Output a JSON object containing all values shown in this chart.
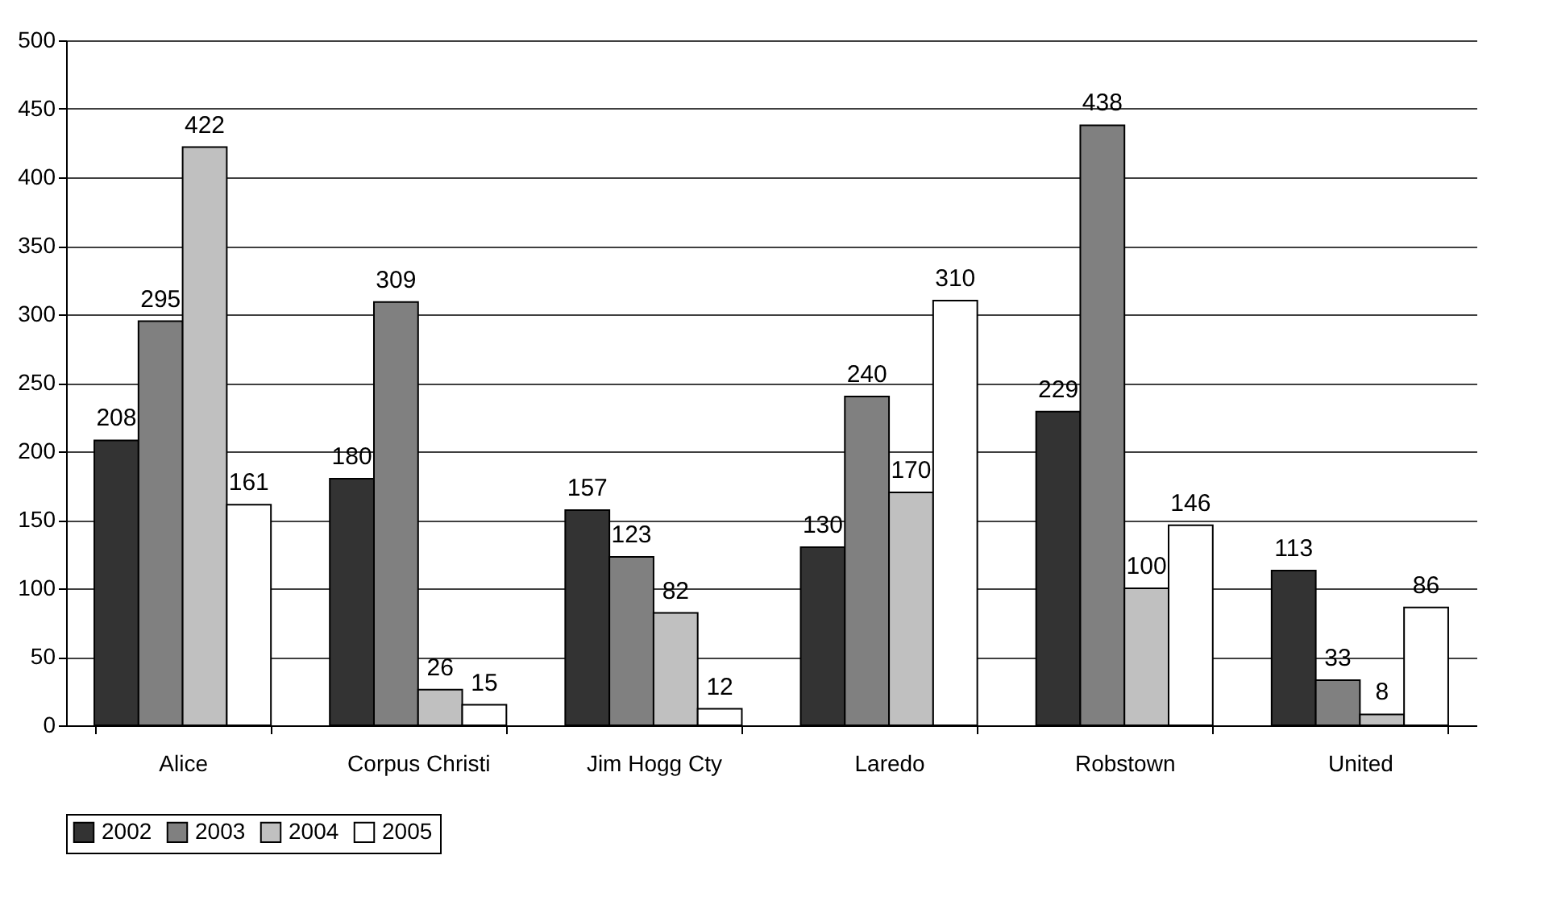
{
  "chart_data": {
    "type": "bar",
    "categories": [
      "Alice",
      "Corpus Christi",
      "Jim Hogg Cty",
      "Laredo",
      "Robstown",
      "United"
    ],
    "series": [
      {
        "name": "2002",
        "color": "#333333",
        "values": [
          208,
          180,
          157,
          130,
          229,
          113
        ]
      },
      {
        "name": "2003",
        "color": "#808080",
        "values": [
          295,
          309,
          123,
          240,
          438,
          33
        ]
      },
      {
        "name": "2004",
        "color": "#c0c0c0",
        "values": [
          422,
          26,
          82,
          170,
          100,
          8
        ]
      },
      {
        "name": "2005",
        "color": "#ffffff",
        "values": [
          161,
          15,
          12,
          310,
          146,
          86
        ]
      }
    ],
    "ylim": [
      0,
      500
    ],
    "yticks": [
      0,
      50,
      100,
      150,
      200,
      250,
      300,
      350,
      400,
      450,
      500
    ],
    "grid": "y",
    "legend": "bottom",
    "data_labels": true
  }
}
